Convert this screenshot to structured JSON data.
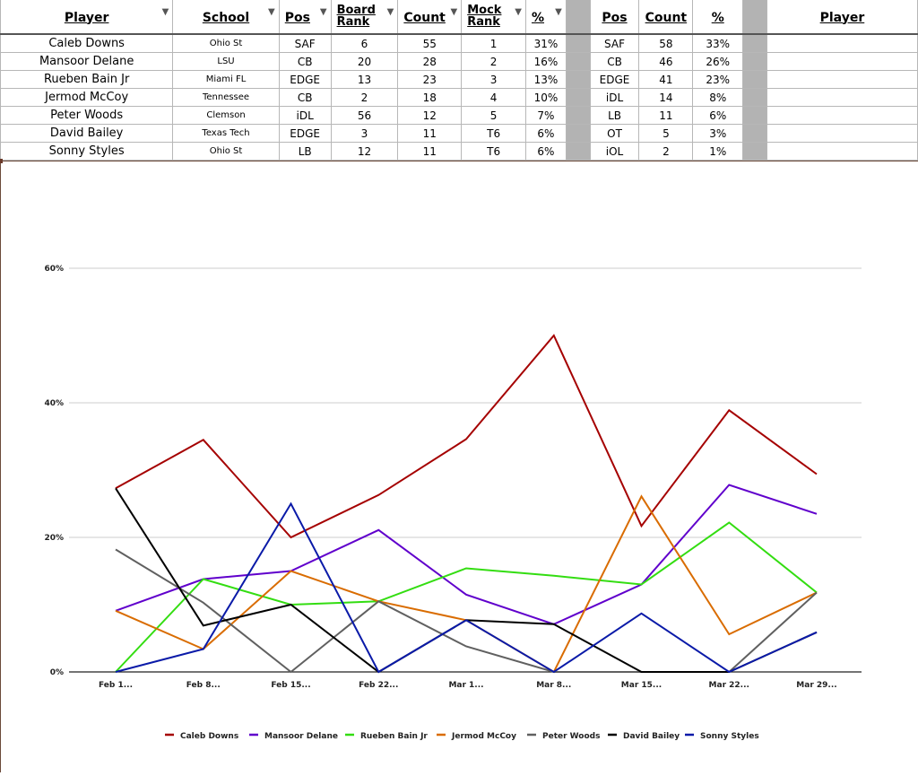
{
  "table": {
    "headers": {
      "player": "Player",
      "school": "School",
      "pos": "Pos",
      "board_rank": [
        "Board",
        "Rank"
      ],
      "count": "Count",
      "mock_rank": [
        "Mock",
        "Rank"
      ],
      "pct": "%",
      "pos2": "Pos",
      "count2": "Count",
      "pct2": "%",
      "player2": "Player"
    },
    "rows": [
      {
        "player": "Caleb Downs",
        "school": "Ohio St",
        "pos": "SAF",
        "board_rank": "6",
        "count": "55",
        "mock_rank": "1",
        "pct": "31%",
        "pos2": "SAF",
        "count2": "58",
        "pct2": "33%"
      },
      {
        "player": "Mansoor Delane",
        "school": "LSU",
        "pos": "CB",
        "board_rank": "20",
        "count": "28",
        "mock_rank": "2",
        "pct": "16%",
        "pos2": "CB",
        "count2": "46",
        "pct2": "26%"
      },
      {
        "player": "Rueben Bain Jr",
        "school": "Miami FL",
        "pos": "EDGE",
        "board_rank": "13",
        "count": "23",
        "mock_rank": "3",
        "pct": "13%",
        "pos2": "EDGE",
        "count2": "41",
        "pct2": "23%"
      },
      {
        "player": "Jermod McCoy",
        "school": "Tennessee",
        "pos": "CB",
        "board_rank": "2",
        "count": "18",
        "mock_rank": "4",
        "pct": "10%",
        "pos2": "iDL",
        "count2": "14",
        "pct2": "8%"
      },
      {
        "player": "Peter Woods",
        "school": "Clemson",
        "pos": "iDL",
        "board_rank": "56",
        "count": "12",
        "mock_rank": "5",
        "pct": "7%",
        "pos2": "LB",
        "count2": "11",
        "pct2": "6%"
      },
      {
        "player": "David Bailey",
        "school": "Texas Tech",
        "pos": "EDGE",
        "board_rank": "3",
        "count": "11",
        "mock_rank": "T6",
        "pct": "6%",
        "pos2": "OT",
        "count2": "5",
        "pct2": "3%"
      },
      {
        "player": "Sonny Styles",
        "school": "Ohio St",
        "pos": "LB",
        "board_rank": "12",
        "count": "11",
        "mock_rank": "T6",
        "pct": "6%",
        "pos2": "iOL",
        "count2": "2",
        "pct2": "1%"
      }
    ]
  },
  "chart_data": {
    "type": "line",
    "title": "",
    "xlabel": "",
    "ylabel": "",
    "categories": [
      "Feb 1...",
      "Feb 8...",
      "Feb 15...",
      "Feb 22...",
      "Mar 1...",
      "Mar 8...",
      "Mar 15...",
      "Mar 22...",
      "Mar 29..."
    ],
    "yticks": [
      0,
      20,
      40,
      60
    ],
    "ytick_labels": [
      "0%",
      "20%",
      "40%",
      "60%"
    ],
    "ylim": [
      0,
      60
    ],
    "grid": true,
    "legend": "bottom",
    "series": [
      {
        "name": "Caleb Downs",
        "color": "#a50000",
        "values": [
          27.3,
          34.5,
          20.0,
          26.3,
          34.6,
          50.0,
          21.7,
          38.9,
          29.4
        ]
      },
      {
        "name": "Mansoor Delane",
        "color": "#6000cc",
        "values": [
          9.1,
          13.8,
          15.0,
          21.1,
          11.5,
          7.1,
          13.0,
          27.8,
          23.5
        ]
      },
      {
        "name": "Rueben Bain Jr",
        "color": "#33dd11",
        "values": [
          0,
          13.8,
          10.0,
          10.5,
          15.4,
          14.3,
          13.0,
          22.2,
          11.8
        ]
      },
      {
        "name": "Jermod McCoy",
        "color": "#d96c00",
        "values": [
          9.1,
          3.4,
          15.0,
          10.5,
          7.7,
          0,
          26.1,
          5.6,
          11.8
        ]
      },
      {
        "name": "Peter Woods",
        "color": "#606060",
        "values": [
          18.2,
          10.3,
          0,
          10.5,
          3.8,
          0,
          0,
          0,
          11.8
        ]
      },
      {
        "name": "David Bailey",
        "color": "#000000",
        "values": [
          27.3,
          6.9,
          10.0,
          0,
          7.7,
          7.1,
          0,
          0,
          5.9
        ]
      },
      {
        "name": "Sonny Styles",
        "color": "#0a1aa8",
        "values": [
          0,
          3.4,
          25.0,
          0,
          7.7,
          0,
          8.7,
          0,
          5.9
        ]
      }
    ]
  }
}
